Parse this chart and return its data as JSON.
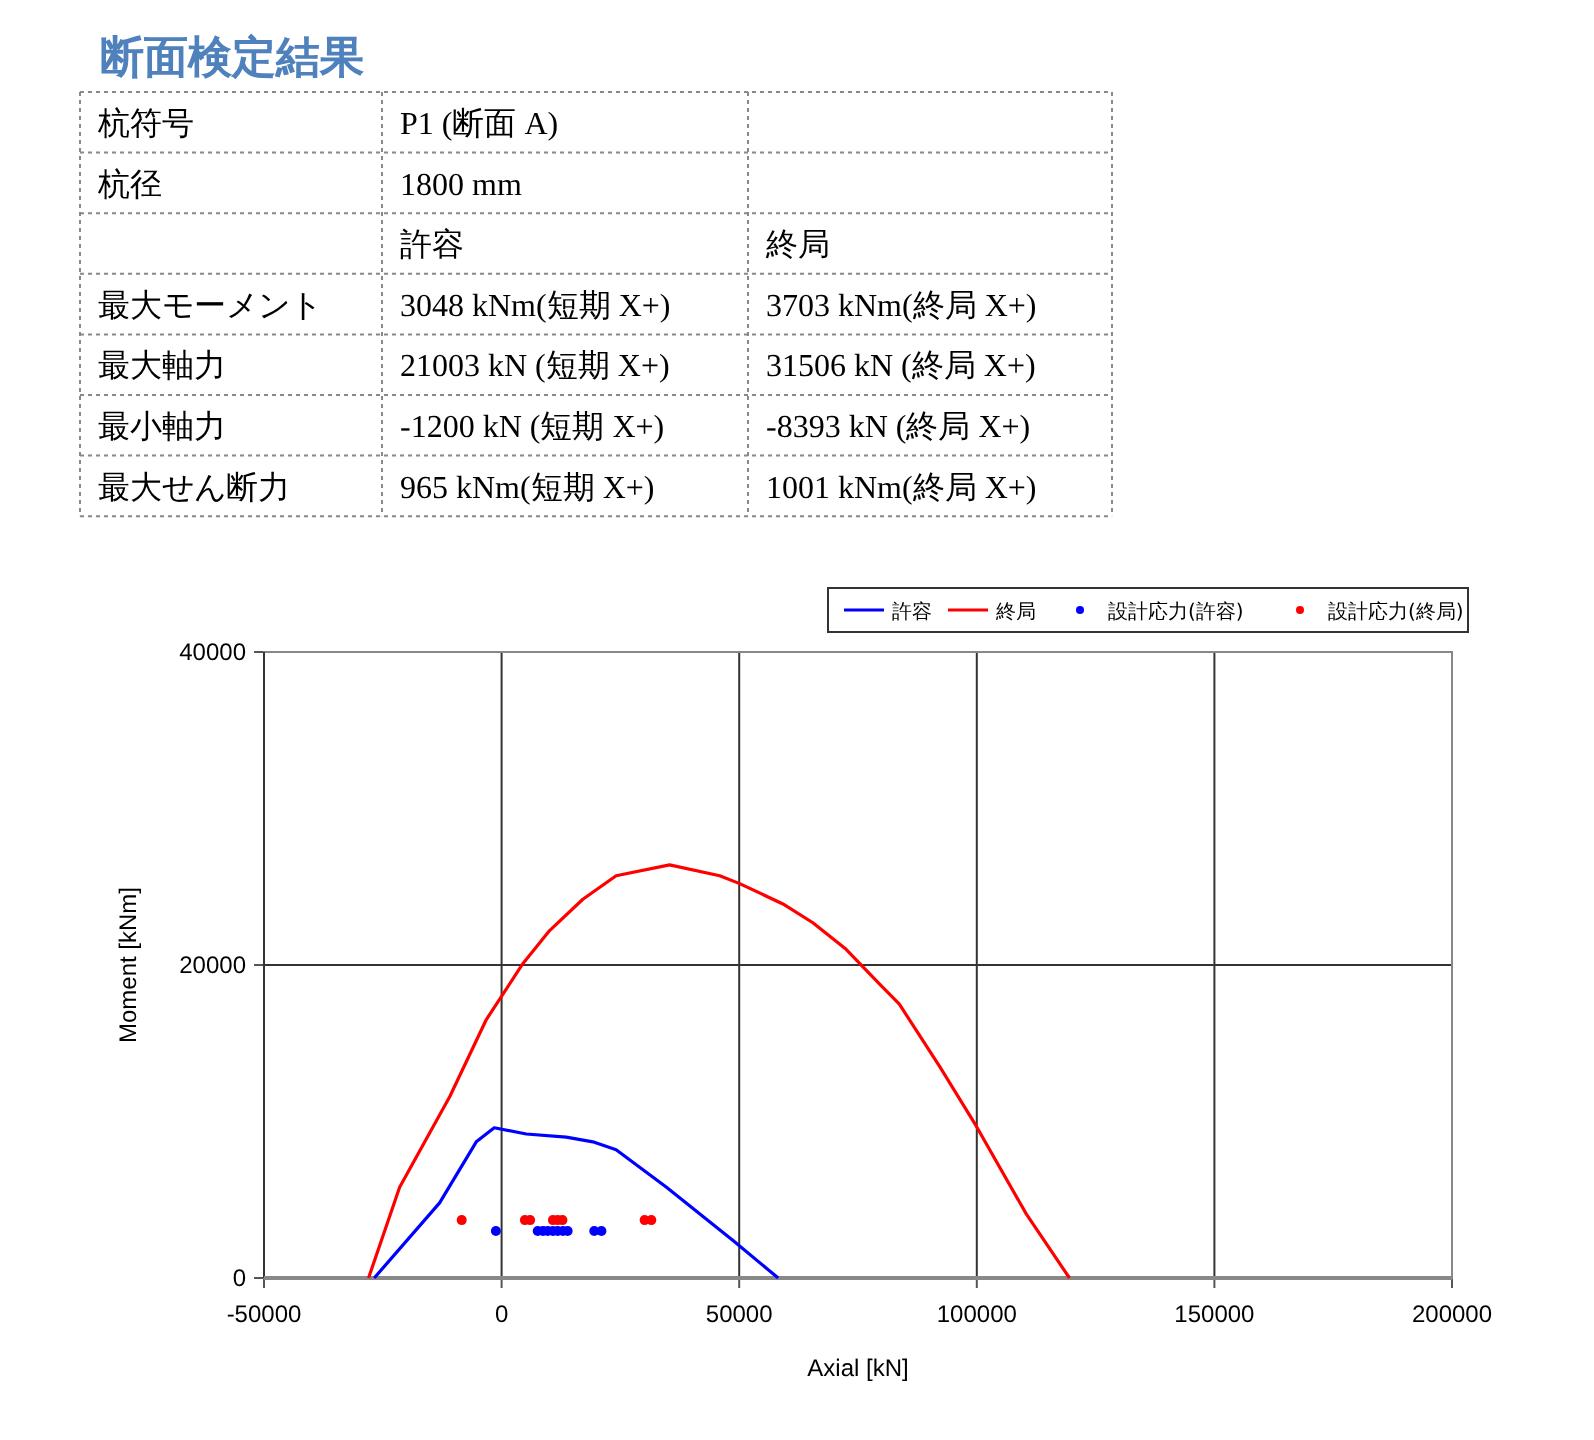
{
  "chart_data": [
    {
      "type": "other",
      "title": "断面検定結果",
      "y_categories": [
        "杭符号",
        "杭径",
        null,
        "最大モーメント",
        "最大軸力",
        "最小軸力",
        "最大せん断力"
      ],
      "cell_labels": [
        [
          "P1 (断面 A)",
          null
        ],
        [
          "1800 mm",
          null
        ],
        [
          "許容",
          "終局"
        ],
        [
          "3048 kNm(短期 X+)",
          "3703 kNm(終局 X+)"
        ],
        [
          "21003 kN (短期 X+)",
          "31506 kN (終局 X+)"
        ],
        [
          "-1200 kN (短期 X+)",
          "-8393 kN (終局 X+)"
        ],
        [
          "965 kNm(短期 X+)",
          "1001 kNm(終局 X+)"
        ]
      ]
    },
    {
      "type": "line",
      "xlabel": "Axial [kN]",
      "ylabel": "Moment [kNm]",
      "xlim": [
        -50000,
        200000
      ],
      "xticks": [
        -50000,
        0,
        50000,
        100000,
        150000,
        200000
      ],
      "ylim": [
        0,
        40000
      ],
      "yticks": [
        0,
        20000,
        40000
      ],
      "grid": true,
      "legend": "top right",
      "series": [
        {
          "name": "許容",
          "type": "line",
          "color": "#0000ff",
          "marker": "none",
          "x": [
            -26800,
            -13050,
            -5330,
            -1540,
            5200,
            13600,
            19200,
            24100,
            34700,
            48700,
            58200
          ],
          "values": [
            0,
            4800,
            8700,
            9600,
            9200,
            9000,
            8700,
            8200,
            5800,
            2400,
            0
          ]
        },
        {
          "name": "終局",
          "type": "line",
          "color": "#ff0000",
          "marker": "none",
          "x": [
            -28000,
            -21460,
            -10900,
            -3240,
            4500,
            10100,
            17100,
            24100,
            35350,
            45900,
            50100,
            59200,
            65500,
            72500,
            79500,
            83700,
            92200,
            99900,
            110400,
            119500
          ],
          "values": [
            0,
            5800,
            11600,
            16500,
            20100,
            22200,
            24200,
            25700,
            26400,
            25700,
            25200,
            23900,
            22700,
            21000,
            18800,
            17500,
            13500,
            9700,
            4100,
            0
          ]
        },
        {
          "name": "設計応力(許容)",
          "type": "scatter",
          "color": "#0000ff",
          "marker": "circle",
          "x": [
            -1200,
            7600,
            8700,
            9700,
            10800,
            11800,
            12900,
            13900,
            19500,
            21003
          ],
          "values": [
            3000,
            3000,
            3000,
            3000,
            3000,
            3000,
            3000,
            3000,
            3000,
            3000
          ]
        },
        {
          "name": "設計応力(終局)",
          "type": "scatter",
          "color": "#ff0000",
          "marker": "circle",
          "x": [
            -8393,
            4900,
            6000,
            10800,
            11800,
            12800,
            30100,
            31506
          ],
          "values": [
            3700,
            3700,
            3700,
            3700,
            3700,
            3700,
            3700,
            3700
          ]
        }
      ]
    }
  ]
}
